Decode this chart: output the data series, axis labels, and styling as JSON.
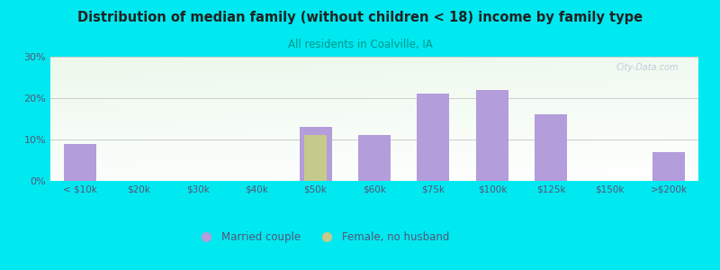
{
  "title": "Distribution of median family (without children < 18) income by family type",
  "subtitle": "All residents in Coalville, IA",
  "categories": [
    "< $10k",
    "$20k",
    "$30k",
    "$40k",
    "$50k",
    "$60k",
    "$75k",
    "$100k",
    "$125k",
    "$150k",
    ">$200k"
  ],
  "married_couple": [
    9,
    0,
    0,
    0,
    13,
    11,
    21,
    22,
    16,
    0,
    7
  ],
  "female_no_husband": [
    0,
    0,
    0,
    0,
    11,
    0,
    0,
    0,
    0,
    0,
    0
  ],
  "bar_color_married": "#b39ddb",
  "bar_color_female": "#c5c98a",
  "background_outer": "#00e8f0",
  "title_color": "#212121",
  "subtitle_color": "#009688",
  "tick_color": "#555577",
  "grid_color": "#cccccc",
  "ylim": [
    0,
    30
  ],
  "yticks": [
    0,
    10,
    20,
    30
  ],
  "bar_width": 0.55,
  "watermark": "City-Data.com",
  "legend_label_married": "Married couple",
  "legend_label_female": "Female, no husband"
}
